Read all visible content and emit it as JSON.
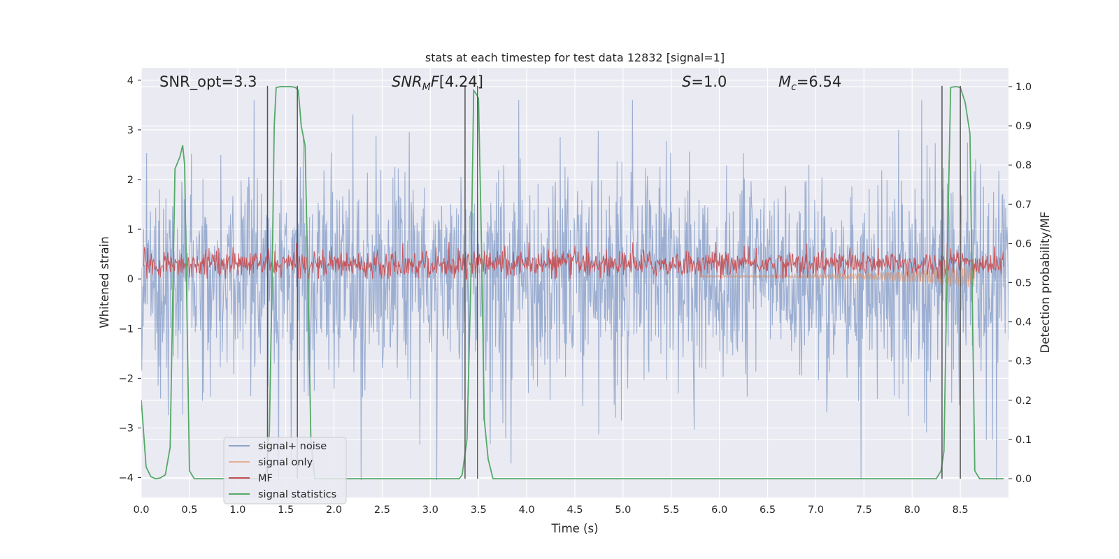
{
  "chart_data": {
    "type": "line",
    "title": "stats at each timestep for test data 12832 [signal=1]",
    "xlabel": "Time (s)",
    "ylabel_left": "Whitened strain",
    "ylabel_right": "Detection probability/MF",
    "xlim": [
      0.0,
      9.0
    ],
    "ylim_left": [
      -4.4,
      4.25
    ],
    "ylim_right": [
      -0.048,
      1.048
    ],
    "x_ticks": [
      "0.0",
      "0.5",
      "1.0",
      "1.5",
      "2.0",
      "2.5",
      "3.0",
      "3.5",
      "4.0",
      "4.5",
      "5.0",
      "5.5",
      "6.0",
      "6.5",
      "7.0",
      "7.5",
      "8.0",
      "8.5"
    ],
    "y_left_ticks": [
      "4",
      "3",
      "2",
      "1",
      "0",
      "−1",
      "−2",
      "−3",
      "−4"
    ],
    "y_right_ticks": [
      "1.0",
      "0.9",
      "0.8",
      "0.7",
      "0.6",
      "0.5",
      "0.4",
      "0.3",
      "0.2",
      "0.1",
      "0.0"
    ],
    "grid": true,
    "legend_position": "lower-left",
    "annotations": {
      "snr_opt": "SNR_opt=3.3",
      "snr_mf": "[4.24]",
      "s_value": "=1.0",
      "mc_value": "=6.54"
    },
    "series": [
      {
        "name": "signal+ noise",
        "color": "#4c72b0",
        "axis": "left",
        "description_level": "noise band approx ±1.6, peaks to ±3.5"
      },
      {
        "name": "signal only",
        "color": "#dd8452",
        "axis": "left"
      },
      {
        "name": "MF",
        "color": "#c44e52",
        "axis": "left"
      },
      {
        "name": "signal statistics",
        "color": "#55a868",
        "axis": "right",
        "x": [
          0.0,
          0.05,
          0.1,
          0.15,
          0.2,
          0.25,
          0.3,
          0.35,
          0.4,
          0.43,
          0.45,
          0.5,
          0.55,
          1.25,
          1.3,
          1.33,
          1.36,
          1.38,
          1.4,
          1.45,
          1.5,
          1.55,
          1.6,
          1.63,
          1.66,
          1.7,
          1.73,
          1.76,
          1.8,
          1.9,
          3.3,
          3.33,
          3.38,
          3.42,
          3.45,
          3.48,
          3.5,
          3.53,
          3.56,
          3.6,
          3.65,
          8.2,
          8.25,
          8.3,
          8.33,
          8.36,
          8.4,
          8.45,
          8.5,
          8.55,
          8.6,
          8.65,
          8.7,
          8.75,
          8.95
        ],
        "y": [
          0.2,
          0.03,
          0.005,
          0.0,
          0.002,
          0.01,
          0.08,
          0.79,
          0.82,
          0.85,
          0.8,
          0.02,
          0.0,
          0.0,
          0.02,
          0.12,
          0.55,
          0.9,
          0.998,
          1.0,
          1.0,
          1.0,
          0.998,
          0.99,
          0.9,
          0.85,
          0.5,
          0.1,
          0.0,
          0.0,
          0.0,
          0.01,
          0.1,
          0.5,
          0.99,
          0.98,
          0.97,
          0.6,
          0.15,
          0.05,
          0.0,
          0.0,
          0.0,
          0.02,
          0.07,
          0.5,
          0.998,
          1.0,
          0.998,
          0.96,
          0.88,
          0.02,
          0.0,
          0.0,
          0.0
        ]
      }
    ],
    "vertical_lines": [
      1.31,
      1.62,
      3.36,
      3.49,
      8.31,
      8.5
    ]
  }
}
